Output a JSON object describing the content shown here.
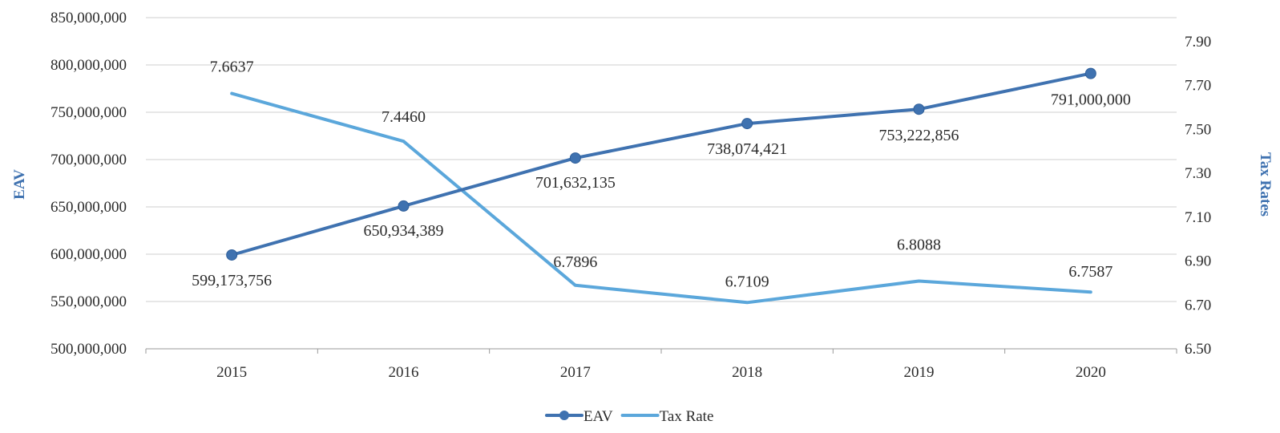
{
  "chart_data": {
    "type": "line",
    "categories": [
      "2015",
      "2016",
      "2017",
      "2018",
      "2019",
      "2020"
    ],
    "series": [
      {
        "name": "EAV",
        "axis": "left",
        "color": "#3f72b0",
        "values": [
          599173756,
          650934389,
          701632135,
          738074421,
          753222856,
          791000000
        ],
        "labels": [
          "599,173,756",
          "650,934,389",
          "701,632,135",
          "738,074,421",
          "753,222,856",
          "791,000,000"
        ],
        "markers": true
      },
      {
        "name": "Tax Rate",
        "axis": "right",
        "color": "#5ba7db",
        "values": [
          7.6637,
          7.446,
          6.7896,
          6.7109,
          6.8088,
          6.7587
        ],
        "labels": [
          "7.6637",
          "7.4460",
          "6.7896",
          "6.7109",
          "6.8088",
          "6.7587"
        ],
        "markers": false
      }
    ],
    "ylabel_left": "EAV",
    "ylabel_right": "Tax Rates",
    "ylim_left": [
      500000000,
      850000000
    ],
    "yticks_left": [
      "500,000,000",
      "550,000,000",
      "600,000,000",
      "650,000,000",
      "700,000,000",
      "750,000,000",
      "800,000,000",
      "850,000,000"
    ],
    "ylim_right": [
      6.5,
      7.9
    ],
    "yticks_right": [
      "6.50",
      "6.70",
      "6.90",
      "7.10",
      "7.30",
      "7.50",
      "7.70",
      "7.90"
    ],
    "grid": true,
    "legend": "bottom-center",
    "axis_title_color": "#3f72b0"
  }
}
